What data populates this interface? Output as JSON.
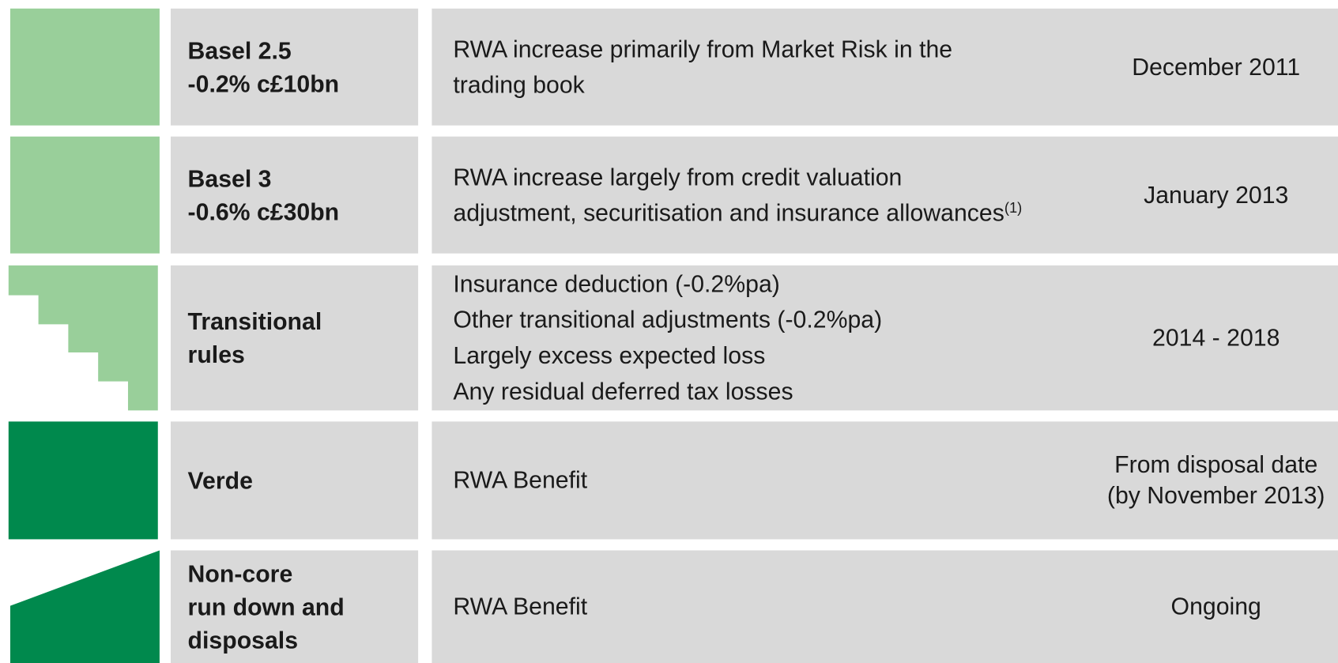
{
  "rows": [
    {
      "label": [
        "Basel 2.5",
        "-0.2% c£10bn"
      ],
      "description": [
        {
          "text": "RWA increase primarily from Market Risk in the"
        },
        {
          "text": "trading book"
        }
      ],
      "date": [
        "December 2011"
      ]
    },
    {
      "label": [
        "Basel 3",
        "-0.6% c£30bn"
      ],
      "description": [
        {
          "text": "RWA increase largely from credit valuation"
        },
        {
          "text": "adjustment, securitisation and insurance allowances",
          "note": "(1)"
        }
      ],
      "date": [
        "January 2013"
      ]
    },
    {
      "label": [
        "Transitional",
        "rules"
      ],
      "description": [
        {
          "text": "Insurance deduction (-0.2%pa)"
        },
        {
          "text": "Other transitional adjustments (-0.2%pa)"
        },
        {
          "text": "Largely excess expected loss"
        },
        {
          "text": "Any residual deferred tax losses"
        }
      ],
      "date": [
        "2014 - 2018"
      ]
    },
    {
      "label": [
        "Verde"
      ],
      "description": [
        {
          "text": "RWA Benefit"
        }
      ],
      "date": [
        "From disposal date",
        "(by November 2013)"
      ]
    },
    {
      "label": [
        "Non-core",
        "run down and",
        "disposals"
      ],
      "description": [
        {
          "text": "RWA Benefit"
        }
      ],
      "date": [
        "Ongoing"
      ]
    }
  ]
}
